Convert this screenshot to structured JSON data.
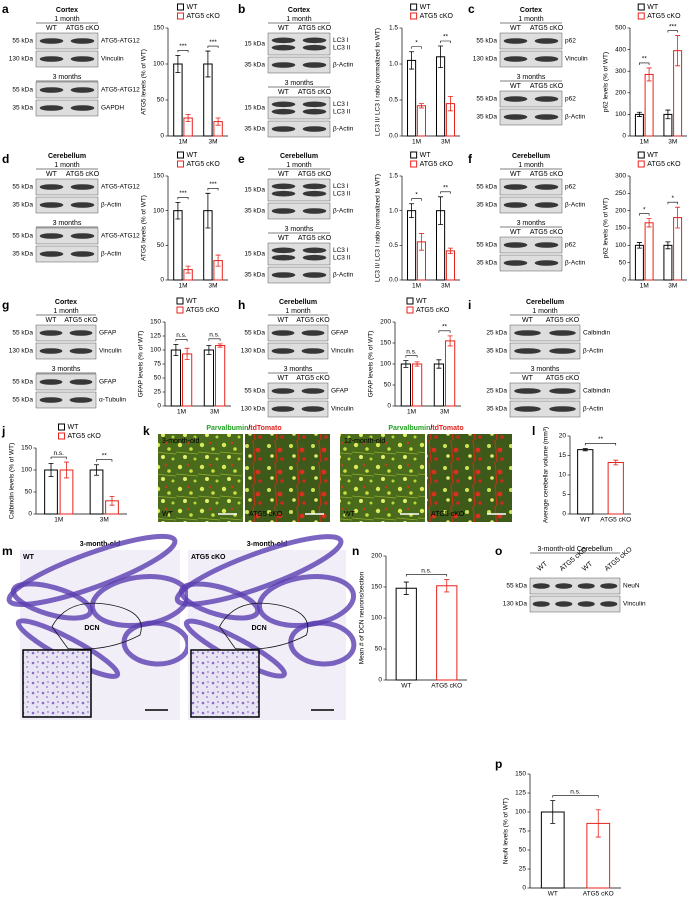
{
  "panels": [
    {
      "letter": "a",
      "blots": [
        {
          "heading": [
            "Cortex",
            "1 month"
          ],
          "lanes": [
            "WT",
            "ATG5 cKO"
          ],
          "rows": [
            {
              "kda": "55 kDa",
              "protein": "ATG5-ATG12"
            },
            {
              "kda": "130 kDa",
              "protein": "Vinculin"
            }
          ]
        },
        {
          "heading": [
            "3 months"
          ],
          "rows": [
            {
              "kda": "55 kDa",
              "protein": "ATG5-ATG12"
            },
            {
              "kda": "35 kDa",
              "protein": "GAPDH"
            }
          ]
        }
      ],
      "chart": {
        "type": "bar",
        "ylabel": "ATG5 levels (% of WT)",
        "categories": [
          "1M",
          "3M"
        ],
        "ylim": [
          0,
          150
        ],
        "yticks": [
          0,
          50,
          100,
          150
        ],
        "series": [
          {
            "name": "WT",
            "color": "#000000",
            "values": [
              100,
              100
            ],
            "errors": [
              12,
              18
            ]
          },
          {
            "name": "ATG5 cKO",
            "color": "#e8221c",
            "values": [
              25,
              20
            ],
            "errors": [
              5,
              5
            ]
          }
        ],
        "significance": [
          "***",
          "***"
        ]
      }
    },
    {
      "letter": "b",
      "blots": [
        {
          "heading": [
            "Cortex",
            "1 month"
          ],
          "lanes": [
            "WT",
            "ATG5 cKO"
          ],
          "rows": [
            {
              "kda": "15 kDa",
              "protein": [
                "LC3 I",
                "LC3 II"
              ]
            },
            {
              "kda": "35 kDa",
              "protein": "β-Actin"
            }
          ]
        },
        {
          "heading": [
            "3 months"
          ],
          "lanes": [
            "WT",
            "ATG5 cKO"
          ],
          "rows": [
            {
              "kda": "15 kDa",
              "protein": [
                "LC3 I",
                "LC3 II"
              ]
            },
            {
              "kda": "35 kDa",
              "protein": "β-Actin"
            }
          ]
        }
      ],
      "chart": {
        "type": "bar",
        "ylabel": "LC3 II/ LC3 I ratio (normalized to WT)",
        "categories": [
          "1M",
          "3M"
        ],
        "ylim": [
          0,
          1.5
        ],
        "yticks": [
          {
            "value": 0,
            "label": "0.0"
          },
          0.5,
          {
            "value": 1,
            "label": "1.0"
          },
          1.5
        ],
        "series": [
          {
            "name": "WT",
            "color": "#000000",
            "values": [
              1.05,
              1.1
            ],
            "errors": [
              0.12,
              0.15
            ]
          },
          {
            "name": "ATG5 cKO",
            "color": "#e8221c",
            "values": [
              0.42,
              0.45
            ],
            "errors": [
              0.03,
              0.1
            ]
          }
        ],
        "significance": [
          "*",
          "**"
        ]
      }
    },
    {
      "letter": "c",
      "blots": [
        {
          "heading": [
            "Cortex",
            "1 month"
          ],
          "lanes": [
            "WT",
            "ATG5 cKO"
          ],
          "rows": [
            {
              "kda": "55 kDa",
              "protein": "p62"
            },
            {
              "kda": "130 kDa",
              "protein": "Vinculin"
            }
          ]
        },
        {
          "heading": [
            "3 months"
          ],
          "lanes": [
            "WT",
            "ATG5 cKO"
          ],
          "rows": [
            {
              "kda": "55 kDa",
              "protein": "p62"
            },
            {
              "kda": "35 kDa",
              "protein": "β-Actin"
            }
          ]
        }
      ],
      "chart": {
        "type": "bar",
        "ylabel": "p62 levels (% of WT)",
        "categories": [
          "1M",
          "3M"
        ],
        "ylim": [
          0,
          500
        ],
        "yticks": [
          0,
          100,
          200,
          300,
          400,
          500
        ],
        "series": [
          {
            "name": "WT",
            "color": "#000000",
            "values": [
              100,
              100
            ],
            "errors": [
              10,
              20
            ]
          },
          {
            "name": "ATG5 cKO",
            "color": "#e8221c",
            "values": [
              285,
              395
            ],
            "errors": [
              30,
              70
            ]
          }
        ],
        "significance": [
          "**",
          "***"
        ]
      }
    },
    {
      "letter": "d",
      "blots": [
        {
          "heading": [
            "Cerebellum",
            "1 month"
          ],
          "lanes": [
            "WT",
            "ATG5 cKO"
          ],
          "rows": [
            {
              "kda": "55 kDa",
              "protein": "ATG5-ATG12"
            },
            {
              "kda": "35 kDa",
              "protein": "β-Actin"
            }
          ]
        },
        {
          "heading": [
            "3 months"
          ],
          "rows": [
            {
              "kda": "55 kDa",
              "protein": "ATG5-ATG12"
            },
            {
              "kda": "35 kDa",
              "protein": "β-Actin"
            }
          ]
        }
      ],
      "chart": {
        "type": "bar",
        "ylabel": "ATG5 levels (% of WT)",
        "categories": [
          "1M",
          "3M"
        ],
        "ylim": [
          0,
          150
        ],
        "yticks": [
          0,
          50,
          100,
          150
        ],
        "series": [
          {
            "name": "WT",
            "color": "#000000",
            "values": [
              100,
              100
            ],
            "errors": [
              12,
              25
            ]
          },
          {
            "name": "ATG5 cKO",
            "color": "#e8221c",
            "values": [
              15,
              28
            ],
            "errors": [
              5,
              8
            ]
          }
        ],
        "significance": [
          "***",
          "***"
        ]
      }
    },
    {
      "letter": "e",
      "blots": [
        {
          "heading": [
            "Cerebellum",
            "1 month"
          ],
          "lanes": [
            "WT",
            "ATG5 cKO"
          ],
          "rows": [
            {
              "kda": "15 kDa",
              "protein": [
                "LC3 I",
                "LC3 II"
              ]
            },
            {
              "kda": "35 kDa",
              "protein": "β-Actin"
            }
          ]
        },
        {
          "heading": [
            "3 months"
          ],
          "lanes": [
            "WT",
            "ATG5 cKO"
          ],
          "rows": [
            {
              "kda": "15 kDa",
              "protein": [
                "LC3 I",
                "LC3 II"
              ]
            },
            {
              "kda": "35 kDa",
              "protein": "β-Actin"
            }
          ]
        }
      ],
      "chart": {
        "type": "bar",
        "ylabel": "LC3 II/ LC3 I ratio (normalized to WT)",
        "categories": [
          "1M",
          "3M"
        ],
        "ylim": [
          0,
          1.5
        ],
        "yticks": [
          {
            "value": 0,
            "label": "0.0"
          },
          0.5,
          {
            "value": 1,
            "label": "1.0"
          },
          1.5
        ],
        "series": [
          {
            "name": "WT",
            "color": "#000000",
            "values": [
              1.0,
              1.0
            ],
            "errors": [
              0.1,
              0.2
            ]
          },
          {
            "name": "ATG5 cKO",
            "color": "#e8221c",
            "values": [
              0.55,
              0.42
            ],
            "errors": [
              0.12,
              0.04
            ]
          }
        ],
        "significance": [
          "*",
          "**"
        ]
      }
    },
    {
      "letter": "f",
      "blots": [
        {
          "heading": [
            "Cerebellum",
            "1 month"
          ],
          "lanes": [
            "WT",
            "ATG5 cKO"
          ],
          "rows": [
            {
              "kda": "55 kDa",
              "protein": "p62"
            },
            {
              "kda": "35 kDa",
              "protein": "β-Actin"
            }
          ]
        },
        {
          "heading": [
            "3 months"
          ],
          "lanes": [
            "WT",
            "ATG5 cKO"
          ],
          "rows": [
            {
              "kda": "55 kDa",
              "protein": "p62"
            },
            {
              "kda": "35 kDa",
              "protein": "β-Actin"
            }
          ]
        }
      ],
      "chart": {
        "type": "bar",
        "ylabel": "p62 levels (% of WT)",
        "categories": [
          "1M",
          "3M"
        ],
        "ylim": [
          0,
          300
        ],
        "yticks": [
          0,
          50,
          100,
          150,
          200,
          250,
          300
        ],
        "series": [
          {
            "name": "WT",
            "color": "#000000",
            "values": [
              100,
              100
            ],
            "errors": [
              8,
              10
            ]
          },
          {
            "name": "ATG5 cKO",
            "color": "#e8221c",
            "values": [
              165,
              180
            ],
            "errors": [
              12,
              30
            ]
          }
        ],
        "significance": [
          "*",
          "*"
        ]
      }
    },
    {
      "letter": "g",
      "blots": [
        {
          "heading": [
            "Cortex",
            "1 month"
          ],
          "lanes": [
            "WT",
            "ATG5 cKO"
          ],
          "rows": [
            {
              "kda": "55 kDa",
              "protein": "GFAP"
            },
            {
              "kda": "130 kDa",
              "protein": "Vinculin"
            }
          ]
        },
        {
          "heading": [
            "3 months"
          ],
          "rows": [
            {
              "kda": "55 kDa",
              "protein": "GFAP"
            },
            {
              "kda": "55 kDa",
              "protein": "α-Tubulin"
            }
          ]
        }
      ],
      "chart": {
        "type": "bar",
        "ylabel": "GFAP levels (% of WT)",
        "categories": [
          "1M",
          "3M"
        ],
        "ylim": [
          0,
          150
        ],
        "yticks": [
          0,
          25,
          50,
          75,
          100,
          125,
          150
        ],
        "series": [
          {
            "name": "WT",
            "color": "#000000",
            "values": [
              100,
              100
            ],
            "errors": [
              10,
              8
            ]
          },
          {
            "name": "ATG5 cKO",
            "color": "#e8221c",
            "values": [
              93,
              108
            ],
            "errors": [
              10,
              3
            ]
          }
        ],
        "significance": [
          "n.s.",
          "n.s."
        ]
      }
    },
    {
      "letter": "h",
      "blots": [
        {
          "heading": [
            "Cerebellum",
            "1 month"
          ],
          "lanes": [
            "WT",
            "ATG5 cKO"
          ],
          "rows": [
            {
              "kda": "55 kDa",
              "protein": "GFAP"
            },
            {
              "kda": "130 kDa",
              "protein": "Vinculin"
            }
          ]
        },
        {
          "heading": [
            "3 months"
          ],
          "lanes": [
            "WT",
            "ATG5 cKO"
          ],
          "rows": [
            {
              "kda": "55 kDa",
              "protein": "GFAP"
            },
            {
              "kda": "130 kDa",
              "protein": "Vinculin"
            }
          ]
        }
      ],
      "chart": {
        "type": "bar",
        "ylabel": "GFAP levels (% of WT)",
        "categories": [
          "1M",
          "3M"
        ],
        "ylim": [
          0,
          200
        ],
        "yticks": [
          0,
          50,
          100,
          150,
          200
        ],
        "series": [
          {
            "name": "WT",
            "color": "#000000",
            "values": [
              100,
              100
            ],
            "errors": [
              8,
              10
            ]
          },
          {
            "name": "ATG5 cKO",
            "color": "#e8221c",
            "values": [
              100,
              155
            ],
            "errors": [
              5,
              12
            ]
          }
        ],
        "significance": [
          "n.s.",
          "**"
        ]
      }
    },
    {
      "letter": "i",
      "blots": [
        {
          "heading": [
            "Cerebellum",
            "1 month"
          ],
          "lanes": [
            "WT",
            "ATG5 cKO"
          ],
          "rows": [
            {
              "kda": "25 kDa",
              "protein": "Calbindin"
            },
            {
              "kda": "35 kDa",
              "protein": "β-Actin"
            }
          ]
        },
        {
          "heading": [
            "3 months"
          ],
          "lanes": [
            "WT",
            "ATG5 cKO"
          ],
          "rows": [
            {
              "kda": "25 kDa",
              "protein": "Calbindin"
            },
            {
              "kda": "35 kDa",
              "protein": "β-Actin"
            }
          ]
        }
      ]
    },
    {
      "letter": "j",
      "chart": {
        "type": "bar",
        "ylabel": "Calbindin levels (% of WT)",
        "categories": [
          "1M",
          "3M"
        ],
        "ylim": [
          0,
          150
        ],
        "yticks": [
          0,
          50,
          100,
          150
        ],
        "series": [
          {
            "name": "WT",
            "color": "#000000",
            "values": [
              100,
              100
            ],
            "errors": [
              15,
              12
            ]
          },
          {
            "name": "ATG5 cKO",
            "color": "#e8221c",
            "values": [
              100,
              30
            ],
            "errors": [
              18,
              10
            ]
          }
        ],
        "significance": [
          "n.s.",
          "**"
        ]
      }
    },
    {
      "letter": "k",
      "stain_titles": [
        [
          "Parvalbumin",
          "/",
          "tdTomato"
        ],
        [
          "Parvalbumin",
          "/",
          "tdTomato"
        ]
      ],
      "images": [
        {
          "age": "3-month-old",
          "genotype": "WT"
        },
        {
          "genotype": "ATG5 cKO"
        },
        {
          "age": "12-month-old",
          "genotype": "WT"
        },
        {
          "genotype": "ATG5 cKO"
        }
      ]
    },
    {
      "letter": "l",
      "chart": {
        "type": "bar",
        "ylabel": "Average cerebellar volume (mm³)",
        "categories": [
          "WT",
          "ATG5 cKO"
        ],
        "ylim": [
          0,
          20
        ],
        "yticks": [
          0,
          5,
          10,
          15,
          20
        ],
        "values": [
          16.5,
          13.2
        ],
        "errors": [
          0.3,
          0.6
        ],
        "colors": [
          "#000000",
          "#e8221c"
        ],
        "significance": "**"
      }
    },
    {
      "letter": "m",
      "images": [
        {
          "age": "3-month-old",
          "genotype": "WT",
          "region": "DCN"
        },
        {
          "age": "3-month-old",
          "genotype": "ATG5 cKO",
          "region": "DCN"
        }
      ]
    },
    {
      "letter": "n",
      "chart": {
        "type": "bar",
        "ylabel": "Mean # of DCN neurons/section",
        "categories": [
          "WT",
          "ATG5 cKO"
        ],
        "ylim": [
          0,
          200
        ],
        "yticks": [
          0,
          50,
          100,
          150,
          200
        ],
        "values": [
          148,
          152
        ],
        "errors": [
          10,
          10
        ],
        "colors": [
          "#000000",
          "#e8221c"
        ],
        "significance": "n.s."
      }
    },
    {
      "letter": "o",
      "blots": [
        {
          "heading": [
            "3-month-old Cerebellum"
          ],
          "lanes": [
            "WT",
            "ATG5 cKO",
            "WT",
            "ATG5 cKO"
          ],
          "rows": [
            {
              "kda": "55 kDa",
              "protein": "NeuN"
            },
            {
              "kda": "130 kDa",
              "protein": "Vinculin"
            }
          ]
        }
      ]
    },
    {
      "letter": "p",
      "chart": {
        "type": "bar",
        "ylabel": "NeuN levels (% of WT)",
        "categories": [
          "WT",
          "ATG5 cKO"
        ],
        "ylim": [
          0,
          150
        ],
        "yticks": [
          0,
          25,
          50,
          75,
          100,
          125,
          150
        ],
        "values": [
          100,
          85
        ],
        "errors": [
          15,
          18
        ],
        "colors": [
          "#000000",
          "#e8221c"
        ],
        "significance": "n.s."
      }
    }
  ]
}
